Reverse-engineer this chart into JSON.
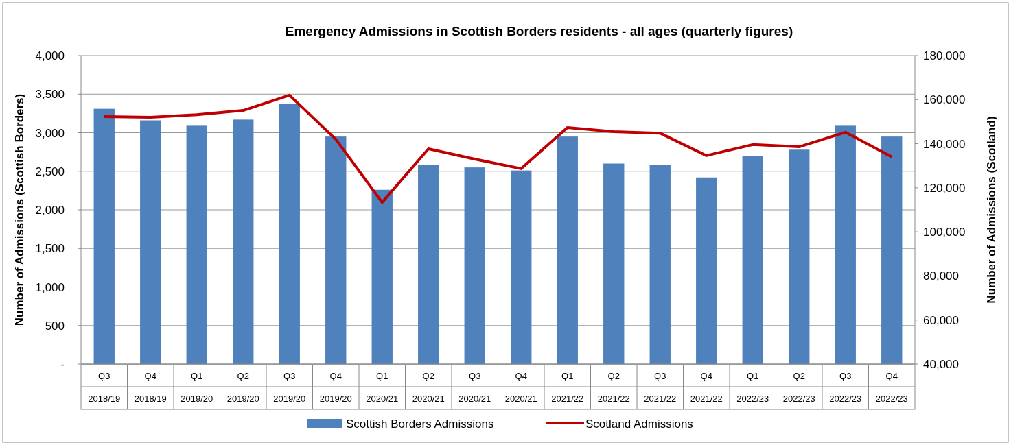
{
  "chart_data": {
    "type": "bar",
    "title": "Emergency Admissions in Scottish Borders residents - all ages (quarterly figures)",
    "ylabel": "Number of Admissions (Scottish Borders)",
    "y2label": "Number of Admissions (Scotland)",
    "categories": [
      "Q3 2018/19",
      "Q4 2018/19",
      "Q1 2019/20",
      "Q2 2019/20",
      "Q3 2019/20",
      "Q4 2019/20",
      "Q1 2020/21",
      "Q2 2020/21",
      "Q3 2020/21",
      "Q4 2020/21",
      "Q1 2021/22",
      "Q2 2021/22",
      "Q3 2021/22",
      "Q4 2021/22",
      "Q1 2022/23",
      "Q2 2022/23",
      "Q3 2022/23",
      "Q4 2022/23"
    ],
    "series": [
      {
        "name": "Scottish Borders Admissions",
        "color": "#4f81bd",
        "values": [
          3310,
          3160,
          3090,
          3170,
          3370,
          2950,
          2260,
          2580,
          2550,
          2510,
          2950,
          2600,
          2580,
          2420,
          2700,
          2780,
          3090,
          2950
        ]
      },
      {
        "name": "Scotland Admissions",
        "type": "line",
        "axis": "y2",
        "color": "#c00000",
        "values": [
          152300,
          152000,
          153200,
          155100,
          162000,
          142000,
          113400,
          137700,
          133000,
          128700,
          147300,
          145500,
          144800,
          134600,
          139600,
          138600,
          145200,
          134000
        ]
      }
    ],
    "ylim": [
      0,
      4000
    ],
    "yticks": [
      {
        "value": 0,
        "label": "-"
      },
      {
        "value": 500,
        "label": "500"
      },
      {
        "value": 1000,
        "label": "1,000"
      },
      {
        "value": 1500,
        "label": "1,500"
      },
      {
        "value": 2000,
        "label": "2,000"
      },
      {
        "value": 2500,
        "label": "2,500"
      },
      {
        "value": 3000,
        "label": "3,000"
      },
      {
        "value": 3500,
        "label": "3,500"
      },
      {
        "value": 4000,
        "label": "4,000"
      }
    ],
    "y2lim": [
      40000,
      180000
    ],
    "y2ticks": [
      {
        "value": 40000,
        "label": "40,000"
      },
      {
        "value": 60000,
        "label": "60,000"
      },
      {
        "value": 80000,
        "label": "80,000"
      },
      {
        "value": 100000,
        "label": "100,000"
      },
      {
        "value": 120000,
        "label": "120,000"
      },
      {
        "value": 140000,
        "label": "140,000"
      },
      {
        "value": 160000,
        "label": "160,000"
      },
      {
        "value": 180000,
        "label": "180,000"
      }
    ],
    "grid": "y",
    "legend": "bottom",
    "marker": "none",
    "line_style": "solid"
  }
}
